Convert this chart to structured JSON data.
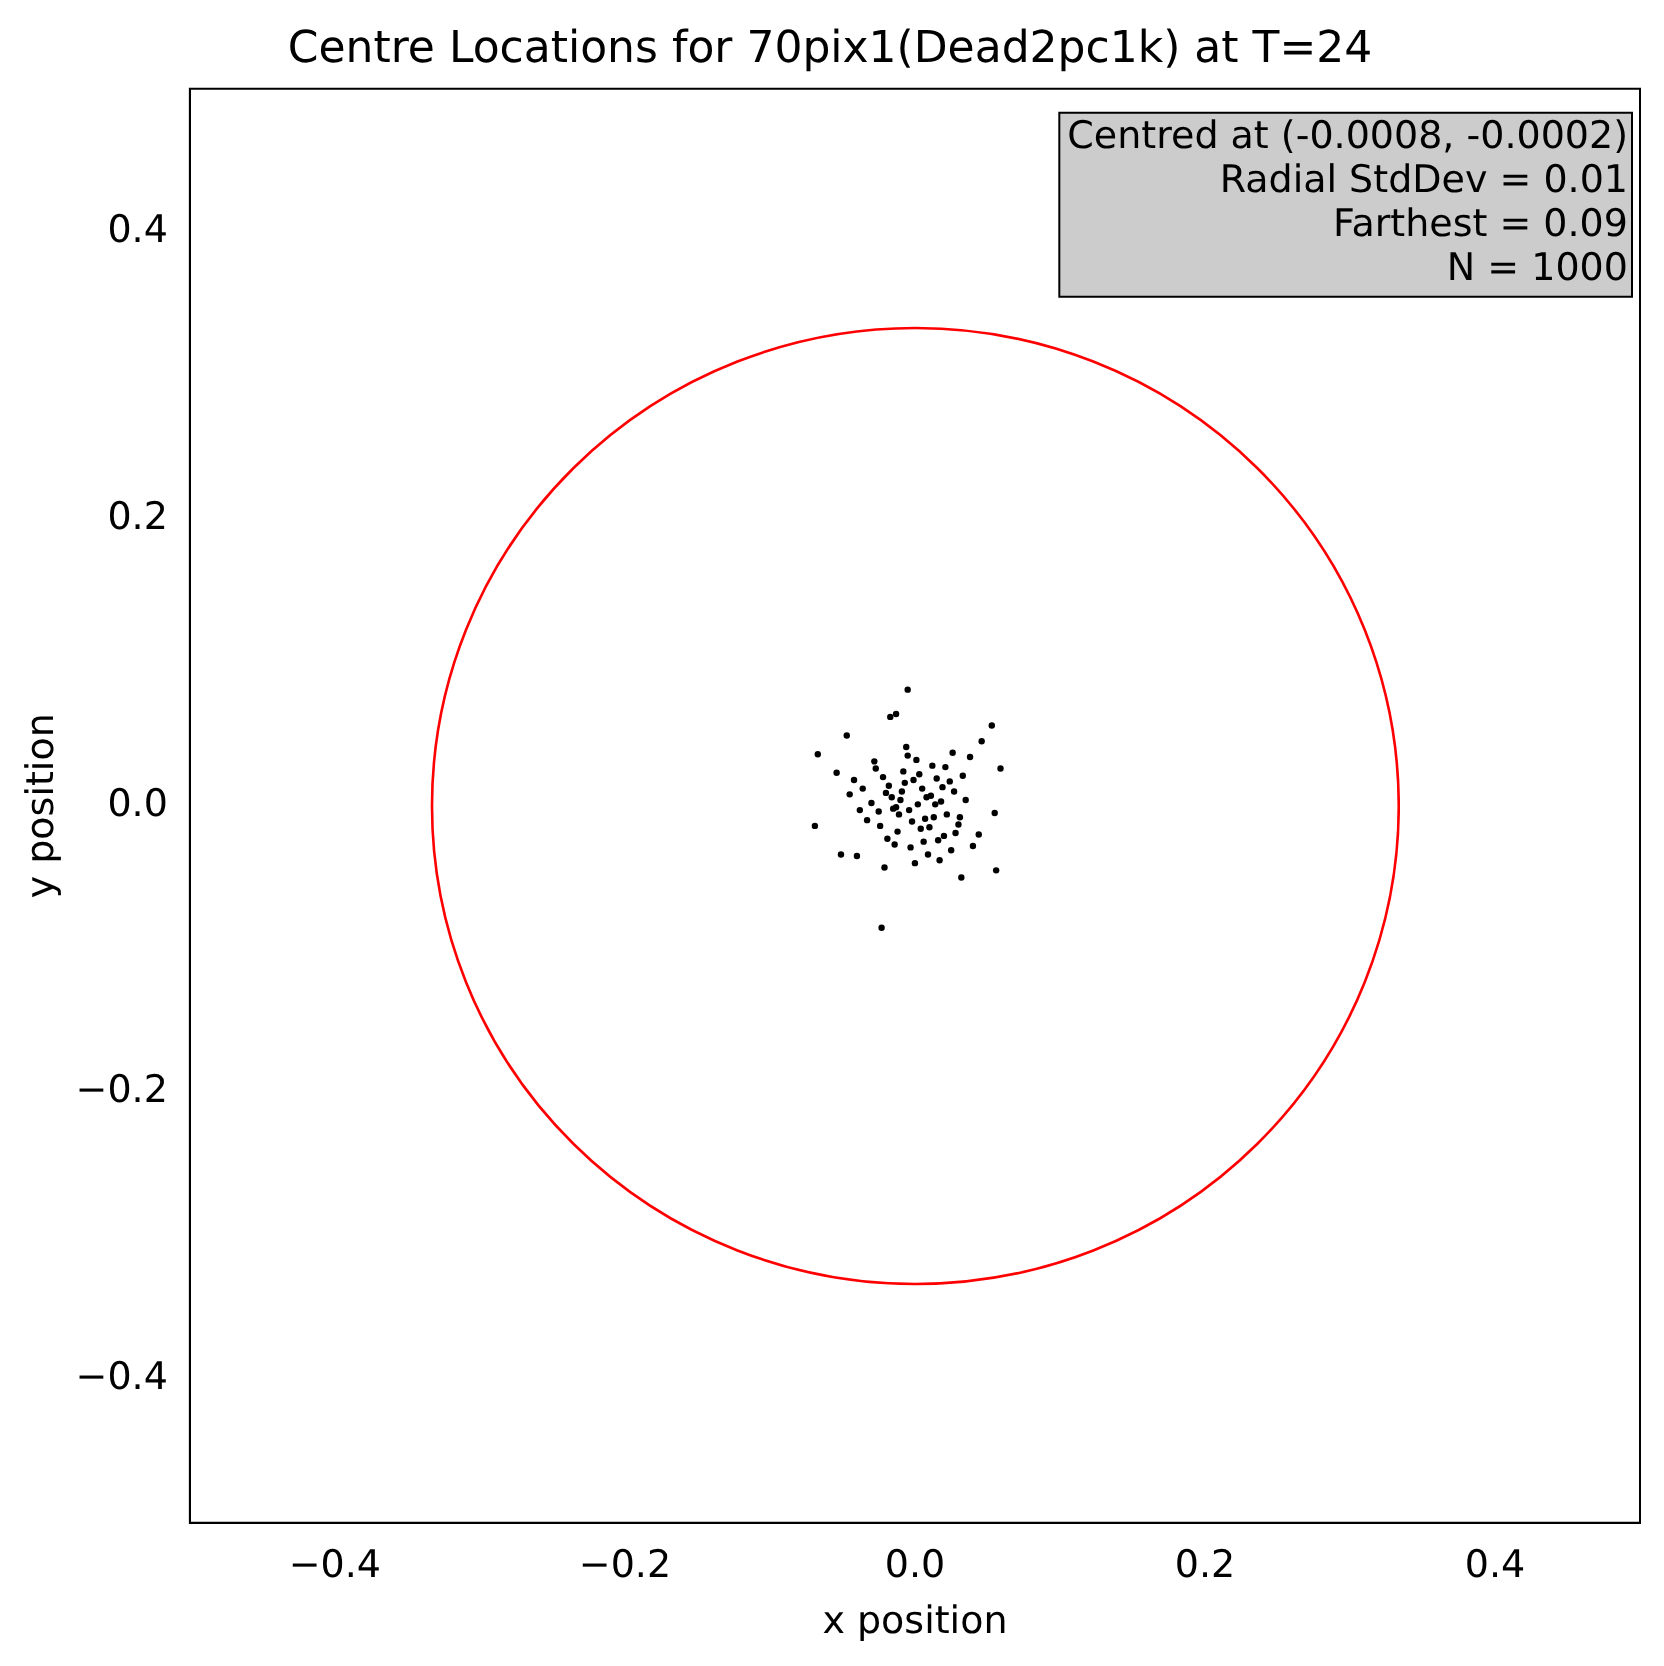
{
  "chart_data": {
    "type": "scatter",
    "title": "Centre Locations for 70pix1(Dead2pc1k) at T=24",
    "xlabel": "x position",
    "ylabel": "y position",
    "xlim": [
      -0.5,
      0.5
    ],
    "ylim": [
      -0.5,
      0.5
    ],
    "xticks": [
      -0.4,
      -0.2,
      {
        "value": 0,
        "label": "0.0"
      },
      0.2,
      0.4
    ],
    "yticks": [
      -0.4,
      -0.2,
      {
        "value": 0,
        "label": "0.0"
      },
      0.2,
      0.4
    ],
    "grid": false,
    "legend": false,
    "marker": "circle",
    "annotations": [
      "Centred at (-0.0008, -0.0002)",
      "Radial StdDev = 0.01",
      "Farthest = 0.09",
      "N = 1000"
    ],
    "series": [
      {
        "color": "#000000",
        "x": [
          -0.005,
          -0.023,
          -0.069,
          -0.067,
          0.053,
          0.059,
          0.056,
          0.032,
          -0.017,
          -0.013,
          -0.047,
          -0.054,
          -0.051,
          0.046,
          0.055,
          0.002,
          -0.004,
          0.008,
          -0.01,
          0.013,
          -0.015,
          0.005,
          -0.002,
          0.018,
          -0.02,
          0.01,
          -0.007,
          0.022,
          -0.025,
          0.015,
          -0.012,
          0.003,
          0.027,
          -0.03,
          0.02,
          -0.018,
          0.006,
          -0.008,
          0.03,
          -0.033,
          0.012,
          -0.003,
          0.024,
          -0.022,
          0.001,
          0.016,
          -0.014,
          0.035,
          -0.036,
          0.009,
          -0.005,
          0.028,
          -0.027,
          0.011,
          -0.016,
          0.019,
          -0.011,
          0.004,
          -0.001,
          0.007,
          -0.009,
          0.014,
          -0.013,
          0.021,
          -0.019,
          0.025,
          -0.024,
          0.033,
          -0.038,
          0.04,
          -0.042,
          0.038,
          -0.04,
          0.017,
          -0.028,
          0.0,
          0.031,
          -0.006,
          0.044,
          -0.045,
          0.026,
          -0.021
        ],
        "values": [
          0.081,
          -0.085,
          -0.014,
          0.036,
          0.056,
          0.026,
          -0.045,
          -0.05,
          0.062,
          0.064,
          0.049,
          0.023,
          -0.034,
          0.045,
          -0.005,
          0.001,
          -0.003,
          0.006,
          0.004,
          -0.008,
          -0.002,
          0.012,
          -0.011,
          0.003,
          0.009,
          -0.015,
          0.016,
          -0.006,
          -0.004,
          0.019,
          -0.018,
          0.022,
          0.01,
          0.002,
          -0.021,
          0.014,
          -0.025,
          0.024,
          -0.013,
          -0.01,
          0.028,
          -0.029,
          0.017,
          0.02,
          0.032,
          -0.024,
          -0.027,
          0.004,
          0.012,
          -0.034,
          0.035,
          -0.019,
          0.026,
          0.007,
          0.006,
          0.013,
          -0.006,
          -0.016,
          0.018,
          -0.009,
          0.01,
          0.001,
          -0.001,
          0.027,
          -0.023,
          -0.031,
          -0.014,
          0.021,
          -0.003,
          -0.028,
          0.018,
          0.034,
          -0.035,
          -0.038,
          0.031,
          -0.04,
          -0.008,
          0.041,
          -0.02,
          0.008,
          0.037,
          -0.043
        ]
      }
    ]
  }
}
